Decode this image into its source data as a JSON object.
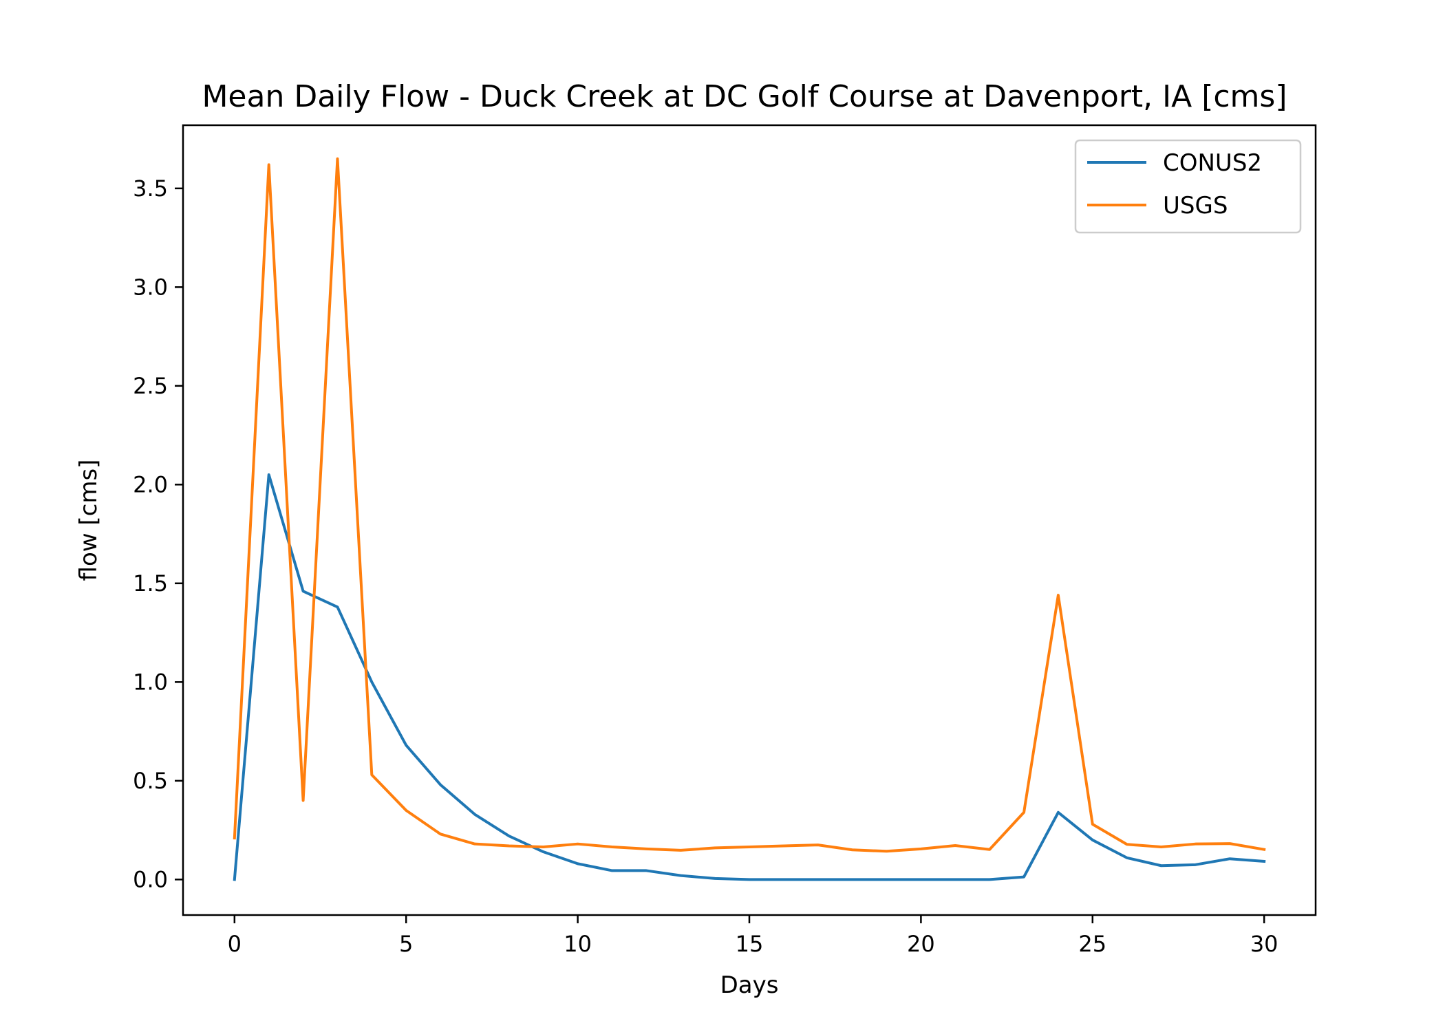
{
  "chart_data": {
    "type": "line",
    "title": "Mean Daily Flow - Duck Creek at DC Golf Course at Davenport, IA [cms]",
    "xlabel": "Days",
    "ylabel": "flow [cms]",
    "xlim": [
      -1.5,
      31.5
    ],
    "ylim": [
      -0.18,
      3.82
    ],
    "xticks": [
      0,
      5,
      10,
      15,
      20,
      25,
      30
    ],
    "yticks": [
      0.0,
      0.5,
      1.0,
      1.5,
      2.0,
      2.5,
      3.0,
      3.5
    ],
    "grid": false,
    "legend_position": "upper right",
    "x": [
      0,
      1,
      2,
      3,
      4,
      5,
      6,
      7,
      8,
      9,
      10,
      11,
      12,
      13,
      14,
      15,
      16,
      17,
      18,
      19,
      20,
      21,
      22,
      23,
      24,
      25,
      26,
      27,
      28,
      29,
      30
    ],
    "series": [
      {
        "name": "CONUS2",
        "color": "#1f77b4",
        "values": [
          0.0,
          2.05,
          1.46,
          1.38,
          1.0,
          0.68,
          0.48,
          0.33,
          0.22,
          0.14,
          0.08,
          0.045,
          0.045,
          0.02,
          0.005,
          0.0,
          0.0,
          0.0,
          0.0,
          0.0,
          0.0,
          0.0,
          0.0,
          0.013,
          0.34,
          0.2,
          0.11,
          0.07,
          0.075,
          0.105,
          0.092
        ]
      },
      {
        "name": "USGS",
        "color": "#ff7f0e",
        "values": [
          0.21,
          3.62,
          0.4,
          3.65,
          0.53,
          0.35,
          0.23,
          0.18,
          0.17,
          0.165,
          0.18,
          0.165,
          0.155,
          0.148,
          0.16,
          0.165,
          0.17,
          0.175,
          0.15,
          0.143,
          0.155,
          0.172,
          0.152,
          0.34,
          1.44,
          0.28,
          0.178,
          0.165,
          0.18,
          0.182,
          0.152
        ]
      }
    ]
  }
}
